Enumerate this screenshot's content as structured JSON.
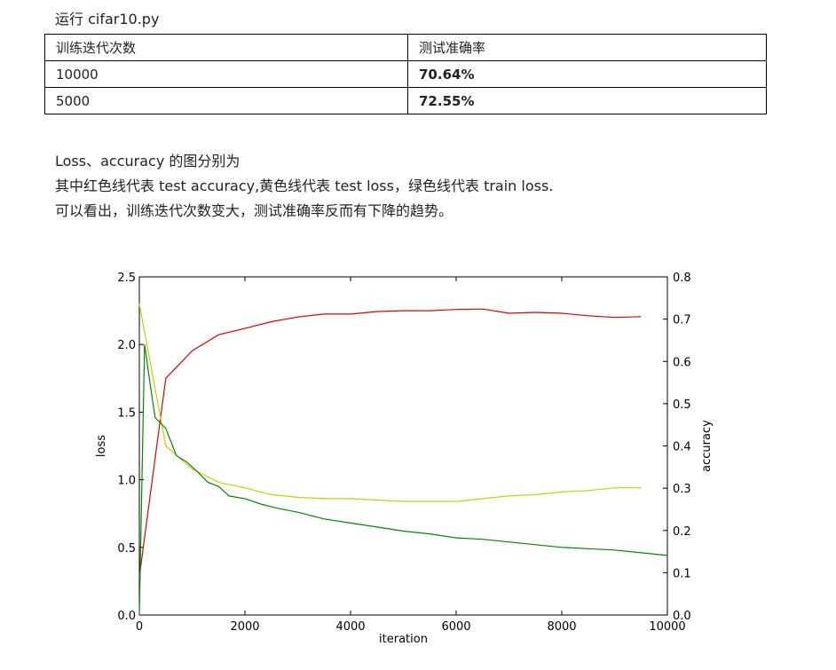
{
  "doc": {
    "title": "运行 cifar10.py",
    "table": {
      "headers": [
        "训练迭代次数",
        "测试准确率"
      ],
      "rows": [
        [
          "10000",
          "70.64%"
        ],
        [
          "5000",
          "72.55%"
        ]
      ]
    },
    "desc": [
      "Loss、accuracy 的图分别为",
      "其中红色线代表 test accuracy,黄色线代表 test loss，绿色线代表 train loss.",
      "可以看出，训练迭代次数变大，测试准确率反而有下降的趋势。"
    ]
  },
  "chart_data": {
    "type": "line",
    "xlabel": "iteration",
    "ylabel": "loss",
    "y2label": "accuracy",
    "xlim": [
      0,
      10000
    ],
    "ylim": [
      0,
      2.5
    ],
    "y2lim": [
      0,
      0.8
    ],
    "xticks": [
      "0",
      "2000",
      "4000",
      "6000",
      "8000",
      "10000"
    ],
    "yticks": [
      "0.0",
      "0.5",
      "1.0",
      "1.5",
      "2.0",
      "2.5"
    ],
    "y2ticks": [
      "0.0",
      "0.1",
      "0.2",
      "0.3",
      "0.4",
      "0.5",
      "0.6",
      "0.7",
      "0.8"
    ],
    "grid": false,
    "series": [
      {
        "axis": "right",
        "color": "#dd0000",
        "x": [
          0,
          500,
          1000,
          1500,
          2000,
          2500,
          3000,
          3500,
          4000,
          4500,
          5000,
          5500,
          6000,
          6500,
          7000,
          7500,
          8000,
          8500,
          9000,
          9500
        ],
        "y": [
          0.09,
          0.56,
          0.625,
          0.663,
          0.678,
          0.694,
          0.705,
          0.712,
          0.712,
          0.718,
          0.72,
          0.72,
          0.723,
          0.724,
          0.714,
          0.716,
          0.714,
          0.708,
          0.704,
          0.706
        ]
      },
      {
        "axis": "left",
        "color": "#cccc00",
        "x": [
          0,
          500,
          1000,
          1500,
          2000,
          2500,
          3000,
          3500,
          4000,
          4500,
          5000,
          5500,
          6000,
          6500,
          7000,
          7500,
          8000,
          8500,
          9000,
          9500
        ],
        "y": [
          2.3,
          1.25,
          1.08,
          0.98,
          0.94,
          0.89,
          0.87,
          0.86,
          0.86,
          0.85,
          0.84,
          0.84,
          0.84,
          0.86,
          0.88,
          0.89,
          0.91,
          0.92,
          0.94,
          0.94
        ]
      },
      {
        "axis": "left",
        "color": "#008800",
        "x": [
          0,
          100,
          200,
          300,
          500,
          700,
          900,
          1100,
          1300,
          1500,
          1700,
          2000,
          2300,
          2600,
          3000,
          3500,
          4000,
          4500,
          5000,
          5500,
          6000,
          6500,
          7000,
          7500,
          8000,
          8500,
          9000,
          9500,
          10000
        ],
        "y": [
          0.0,
          2.0,
          1.72,
          1.46,
          1.38,
          1.18,
          1.13,
          1.06,
          0.98,
          0.95,
          0.88,
          0.86,
          0.82,
          0.79,
          0.76,
          0.71,
          0.68,
          0.65,
          0.62,
          0.6,
          0.57,
          0.56,
          0.54,
          0.52,
          0.5,
          0.49,
          0.48,
          0.46,
          0.44
        ]
      }
    ]
  }
}
